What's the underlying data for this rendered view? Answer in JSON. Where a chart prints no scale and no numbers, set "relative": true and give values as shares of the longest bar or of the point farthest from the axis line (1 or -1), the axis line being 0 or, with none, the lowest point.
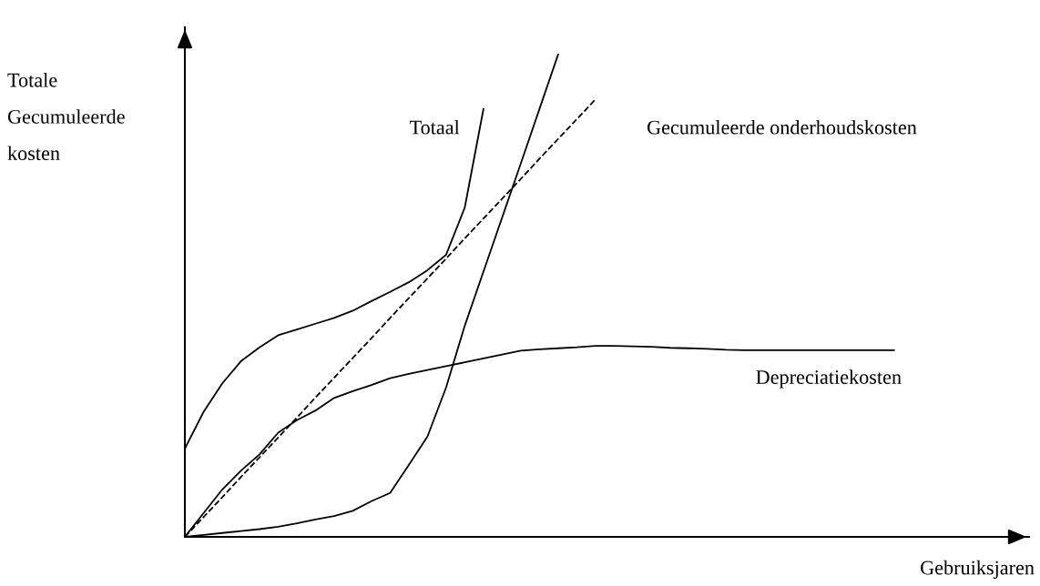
{
  "chart_data": {
    "type": "line",
    "relative": true,
    "xlabel": "Gebruiksjaren",
    "ylabel": "Totale\nGecumuleerde\nkosten",
    "legend": false,
    "categories": [
      null,
      null,
      null,
      null,
      null,
      null,
      null,
      null,
      null,
      null,
      null,
      null,
      null,
      null,
      null,
      null,
      null,
      null,
      null,
      null,
      null,
      null,
      null,
      null,
      null,
      null,
      null,
      null,
      null,
      null,
      null,
      null,
      null,
      null,
      null,
      null,
      null,
      null,
      null
    ],
    "series": [
      {
        "color": "#000000",
        "line_style": "solid",
        "values": [
          0.183,
          0.259,
          0.318,
          0.364,
          0.393,
          0.418,
          0.43,
          0.442,
          0.454,
          0.469,
          0.489,
          0.508,
          0.528,
          0.553,
          0.585,
          0.683,
          0.887,
          null,
          null,
          null,
          null,
          null,
          null,
          null,
          null,
          null,
          null,
          null,
          null,
          null,
          null,
          null,
          null,
          null,
          null,
          null,
          null,
          null,
          null
        ]
      },
      {
        "color": "#000000",
        "line_style": "solid",
        "values": [
          0,
          0.004,
          0.008,
          0.012,
          0.016,
          0.021,
          0.028,
          0.036,
          0.043,
          0.054,
          0.074,
          0.091,
          0.149,
          0.208,
          0.31,
          0.438,
          0.55,
          0.662,
          0.774,
          0.887,
          1.0,
          null,
          null,
          null,
          null,
          null,
          null,
          null,
          null,
          null,
          null,
          null,
          null,
          null,
          null,
          null,
          null,
          null,
          null
        ]
      },
      {
        "color": "#000000",
        "line_style": "dashed",
        "values": [
          0,
          0.041,
          0.082,
          0.124,
          0.165,
          0.206,
          0.247,
          0.289,
          0.33,
          0.371,
          0.412,
          0.454,
          0.495,
          0.536,
          0.577,
          0.619,
          0.66,
          0.701,
          0.742,
          0.784,
          0.825,
          0.866,
          0.907,
          null,
          null,
          null,
          null,
          null,
          null,
          null,
          null,
          null,
          null,
          null,
          null,
          null,
          null,
          null,
          null
        ]
      },
      {
        "color": "#000000",
        "line_style": "solid",
        "values": [
          0,
          0.049,
          0.098,
          0.137,
          0.171,
          0.216,
          0.242,
          0.262,
          0.288,
          0.302,
          0.315,
          0.329,
          0.338,
          0.346,
          0.354,
          0.362,
          0.37,
          0.378,
          0.386,
          0.389,
          0.391,
          0.393,
          0.396,
          0.396,
          0.395,
          0.394,
          0.392,
          0.391,
          0.39,
          0.388,
          0.387,
          0.387,
          0.387,
          0.387,
          0.387,
          0.387,
          0.387,
          0.387,
          0.387
        ]
      }
    ],
    "annotations": [
      "Totaal",
      "Gecumuleerde onderhoudskosten",
      "Depreciatiekosten"
    ]
  }
}
